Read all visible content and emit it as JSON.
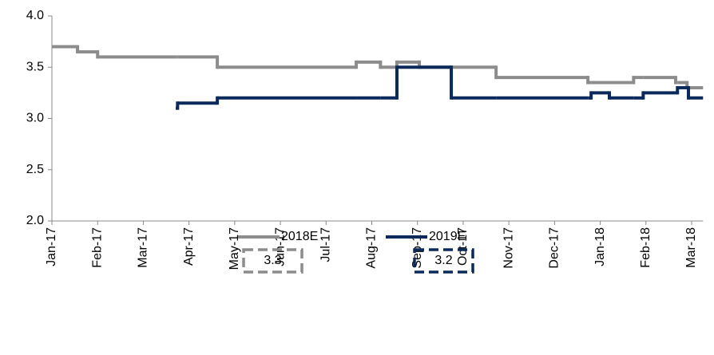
{
  "chart_data": {
    "type": "step",
    "x": [
      0,
      0.56,
      1.0,
      2.71,
      2.75,
      3.62,
      6.66,
      7.19,
      7.55,
      8.04,
      8.74,
      9.72,
      11.73,
      11.8,
      12.2,
      12.73,
      12.94,
      13.65,
      13.69,
      13.9,
      13.93,
      14.25
    ],
    "series": [
      {
        "name": "2018E",
        "color": "#8c8c8c",
        "latest": 3.3,
        "values": [
          3.7,
          3.65,
          3.6,
          3.6,
          3.6,
          3.5,
          3.55,
          3.5,
          3.55,
          3.5,
          3.5,
          3.4,
          3.35,
          3.35,
          3.35,
          3.4,
          3.4,
          3.35,
          3.35,
          3.3,
          3.3,
          3.3
        ]
      },
      {
        "name": "2019E",
        "color": "#0b2a5b",
        "latest": 3.2,
        "values": [
          null,
          null,
          null,
          3.1,
          3.15,
          3.2,
          3.2,
          3.2,
          3.5,
          3.5,
          3.2,
          3.2,
          3.2,
          3.25,
          3.2,
          3.2,
          3.25,
          3.25,
          3.3,
          3.3,
          3.2,
          3.2
        ]
      }
    ],
    "xlim": [
      0,
      14.25
    ],
    "xticks": [
      {
        "value": 0,
        "label": "Jan-17"
      },
      {
        "value": 1,
        "label": "Feb-17"
      },
      {
        "value": 2,
        "label": "Mar-17"
      },
      {
        "value": 3,
        "label": "Apr-17"
      },
      {
        "value": 4,
        "label": "May-17"
      },
      {
        "value": 5,
        "label": "Jun-17"
      },
      {
        "value": 6,
        "label": "Jul-17"
      },
      {
        "value": 7,
        "label": "Aug-17"
      },
      {
        "value": 8,
        "label": "Sep-17"
      },
      {
        "value": 9,
        "label": "Oct-17"
      },
      {
        "value": 10,
        "label": "Nov-17"
      },
      {
        "value": 11,
        "label": "Dec-17"
      },
      {
        "value": 12,
        "label": "Jan-18"
      },
      {
        "value": 13,
        "label": "Feb-18"
      },
      {
        "value": 14,
        "label": "Mar-18"
      }
    ],
    "ylim": [
      2,
      4
    ],
    "yticks": [
      {
        "value": 2,
        "label": "2.0"
      },
      2.5,
      {
        "value": 3,
        "label": "3.0"
      },
      3.5,
      {
        "value": 4,
        "label": "4.0"
      }
    ]
  }
}
